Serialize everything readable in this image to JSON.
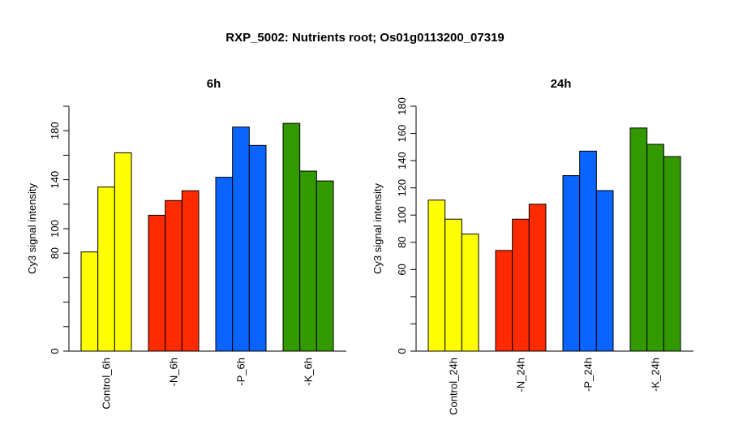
{
  "title": "RXP_5002: Nutrients root; Os01g0113200_07319",
  "chart_data": [
    {
      "type": "bar",
      "title": "6h",
      "ylabel": "Cy3 signal intensity",
      "ylim": [
        0,
        200
      ],
      "yticks": [
        "0",
        "80",
        "100",
        "140",
        "180"
      ],
      "yticks_values": [
        0,
        80,
        100,
        140,
        180
      ],
      "categories": [
        "Control_6h",
        "-N_6h",
        "-P_6h",
        "-K_6h"
      ],
      "colors": [
        "#ffff00",
        "#ff2a00",
        "#0a64ff",
        "#339900"
      ],
      "values": [
        [
          81,
          134,
          162
        ],
        [
          111,
          123,
          131
        ],
        [
          142,
          183,
          168
        ],
        [
          186,
          147,
          139
        ]
      ]
    },
    {
      "type": "bar",
      "title": "24h",
      "ylabel": "Cy3 signal intensity",
      "ylim": [
        0,
        180
      ],
      "yticks": [
        "0",
        "60",
        "80",
        "100",
        "120",
        "140",
        "160",
        "180"
      ],
      "yticks_values": [
        0,
        60,
        80,
        100,
        120,
        140,
        160,
        180
      ],
      "categories": [
        "Control_24h",
        "-N_24h",
        "-P_24h",
        "-K_24h"
      ],
      "colors": [
        "#ffff00",
        "#ff2a00",
        "#0a64ff",
        "#339900"
      ],
      "values": [
        [
          111,
          97,
          86
        ],
        [
          74,
          97,
          108
        ],
        [
          129,
          147,
          118
        ],
        [
          164,
          152,
          143
        ]
      ]
    }
  ]
}
